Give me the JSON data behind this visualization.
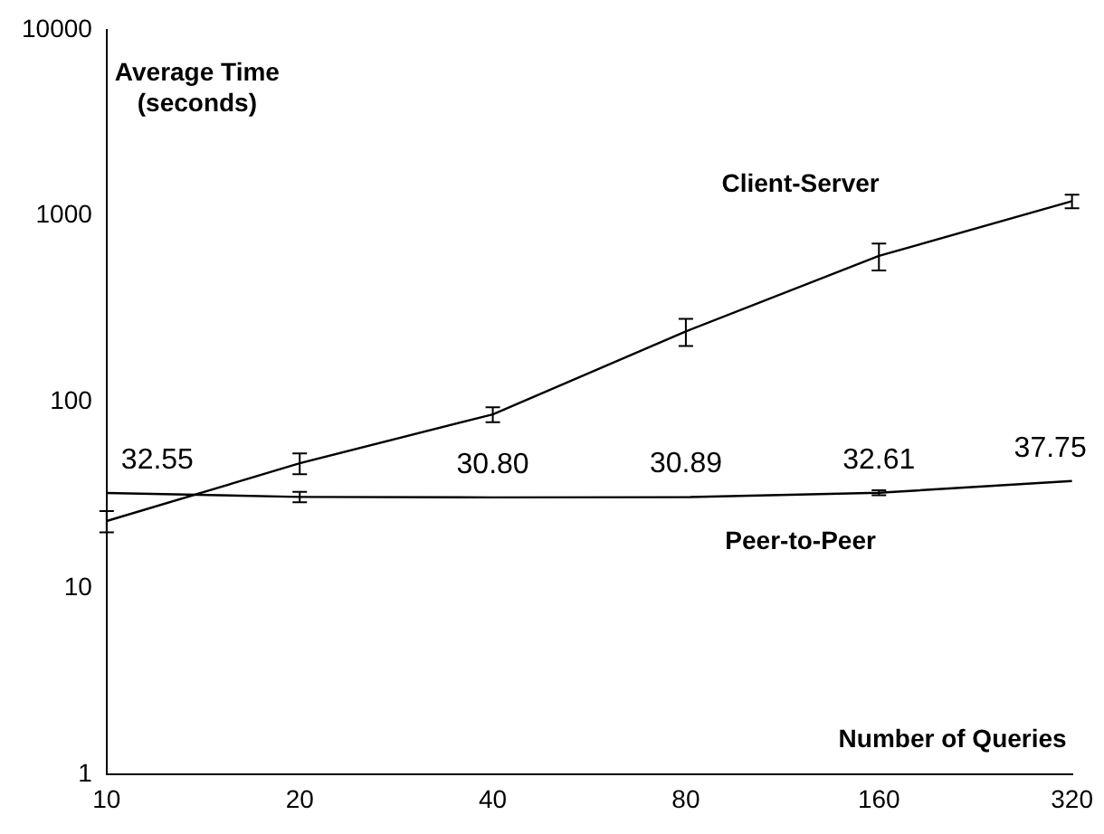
{
  "chart_data": {
    "type": "line",
    "xlabel": "Number of Queries",
    "ylabel": "Average Time (seconds)",
    "categories": [
      "10",
      "20",
      "40",
      "80",
      "160",
      "320"
    ],
    "series": [
      {
        "name": "Client-Server",
        "color": "#000000",
        "values": [
          23,
          47,
          86,
          240,
          610,
          1200
        ],
        "errors": [
          3,
          6,
          8,
          40,
          100,
          100
        ]
      },
      {
        "name": "Peer-to-Peer",
        "color": "#000000",
        "values": [
          32.55,
          31,
          30.8,
          30.89,
          32.61,
          37.75
        ],
        "errors": [
          null,
          2,
          null,
          null,
          1,
          null
        ],
        "value_labels": [
          "32.55",
          null,
          "30.80",
          "30.89",
          "32.61",
          "37.75"
        ]
      }
    ],
    "log": "y",
    "ylim": [
      1,
      10000
    ],
    "yticks": [
      1,
      10,
      100,
      1000,
      10000
    ],
    "grid": false,
    "legend": false,
    "line_style": "solid"
  }
}
